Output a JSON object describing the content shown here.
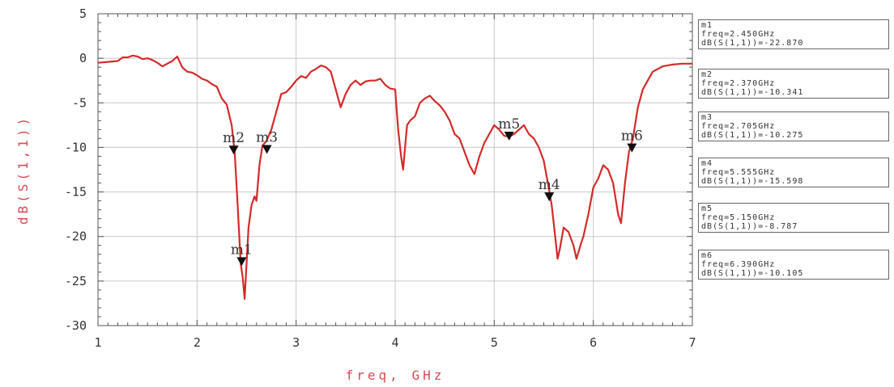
{
  "chart_data": {
    "type": "line",
    "xlabel": "freq, GHz",
    "ylabel": "dB(S(1,1))",
    "xlim": [
      1,
      7
    ],
    "ylim": [
      -30,
      5
    ],
    "xticks": [
      "1",
      "2",
      "3",
      "4",
      "5",
      "6",
      "7"
    ],
    "yticks": [
      "5",
      "0",
      "-5",
      "-10",
      "-15",
      "-20",
      "-25",
      "-30"
    ],
    "grid": true,
    "line_color": "#d42a2a",
    "series": [
      {
        "x": [
          1.0,
          1.1,
          1.2,
          1.25,
          1.3,
          1.35,
          1.4,
          1.45,
          1.5,
          1.55,
          1.6,
          1.65,
          1.7,
          1.75,
          1.8,
          1.85,
          1.9,
          1.95,
          2.0,
          2.05,
          2.1,
          2.15,
          2.2,
          2.25,
          2.3,
          2.35,
          2.38,
          2.41,
          2.44,
          2.46,
          2.48,
          2.5,
          2.52,
          2.55,
          2.58,
          2.6,
          2.63,
          2.66,
          2.7,
          2.75,
          2.8,
          2.85,
          2.9,
          2.95,
          3.0,
          3.05,
          3.1,
          3.15,
          3.2,
          3.25,
          3.3,
          3.35,
          3.4,
          3.45,
          3.5,
          3.55,
          3.6,
          3.65,
          3.7,
          3.75,
          3.8,
          3.85,
          3.9,
          3.95,
          4.0,
          4.03,
          4.06,
          4.08,
          4.1,
          4.12,
          4.15,
          4.2,
          4.25,
          4.3,
          4.35,
          4.4,
          4.45,
          4.5,
          4.55,
          4.6,
          4.65,
          4.7,
          4.75,
          4.8,
          4.85,
          4.9,
          4.95,
          5.0,
          5.05,
          5.1,
          5.15,
          5.2,
          5.25,
          5.3,
          5.35,
          5.4,
          5.45,
          5.5,
          5.55,
          5.58,
          5.61,
          5.64,
          5.66,
          5.7,
          5.75,
          5.8,
          5.83,
          5.87,
          5.9,
          5.95,
          6.0,
          6.05,
          6.1,
          6.15,
          6.2,
          6.25,
          6.28,
          6.32,
          6.36,
          6.4,
          6.45,
          6.5,
          6.55,
          6.6,
          6.7,
          6.8,
          6.9,
          7.0
        ],
        "y": [
          -0.5,
          -0.4,
          -0.3,
          0.1,
          0.1,
          0.3,
          0.2,
          -0.1,
          0.0,
          -0.2,
          -0.5,
          -0.9,
          -0.6,
          -0.3,
          0.2,
          -1.0,
          -1.5,
          -1.6,
          -1.9,
          -2.3,
          -2.5,
          -2.9,
          -3.2,
          -4.5,
          -5.2,
          -7.5,
          -10.5,
          -16.5,
          -23.0,
          -24.5,
          -27.0,
          -23.0,
          -19.0,
          -16.5,
          -15.5,
          -16.0,
          -12.0,
          -9.8,
          -9.3,
          -8.0,
          -6.0,
          -4.0,
          -3.8,
          -3.2,
          -2.5,
          -2.0,
          -2.2,
          -1.5,
          -1.2,
          -0.8,
          -1.0,
          -1.5,
          -3.5,
          -5.5,
          -4.0,
          -3.0,
          -2.5,
          -3.0,
          -2.6,
          -2.5,
          -2.5,
          -2.3,
          -3.0,
          -3.4,
          -3.5,
          -8.0,
          -11.0,
          -12.5,
          -10.0,
          -7.5,
          -7.0,
          -6.5,
          -5.0,
          -4.5,
          -4.2,
          -4.8,
          -5.3,
          -6.0,
          -7.0,
          -8.5,
          -9.0,
          -10.5,
          -12.0,
          -13.0,
          -11.0,
          -9.5,
          -8.5,
          -7.5,
          -8.0,
          -8.7,
          -8.8,
          -8.5,
          -8.0,
          -7.5,
          -8.5,
          -9.0,
          -10.0,
          -11.5,
          -14.5,
          -16.5,
          -19.5,
          -22.5,
          -21.5,
          -19.0,
          -19.5,
          -21.0,
          -22.5,
          -21.0,
          -20.0,
          -17.5,
          -14.5,
          -13.5,
          -12.0,
          -12.5,
          -14.0,
          -17.5,
          -18.5,
          -14.0,
          -10.5,
          -9.0,
          -5.5,
          -3.5,
          -2.5,
          -1.5,
          -0.9,
          -0.7,
          -0.6,
          -0.6
        ]
      }
    ],
    "markers": [
      {
        "name": "m1",
        "x": 2.45,
        "y": -22.87
      },
      {
        "name": "m2",
        "x": 2.37,
        "y": -10.341
      },
      {
        "name": "m3",
        "x": 2.705,
        "y": -10.275
      },
      {
        "name": "m4",
        "x": 5.555,
        "y": -15.598
      },
      {
        "name": "m5",
        "x": 5.15,
        "y": -8.787
      },
      {
        "name": "m6",
        "x": 6.39,
        "y": -10.105
      }
    ]
  },
  "marker_readouts": [
    {
      "name": "m1",
      "freq": "freq=2.450GHz",
      "value": "dB(S(1,1))=-22.870"
    },
    {
      "name": "m2",
      "freq": "freq=2.370GHz",
      "value": "dB(S(1,1))=-10.341"
    },
    {
      "name": "m3",
      "freq": "freq=2.705GHz",
      "value": "dB(S(1,1))=-10.275"
    },
    {
      "name": "m4",
      "freq": "freq=5.555GHz",
      "value": "dB(S(1,1))=-15.598"
    },
    {
      "name": "m5",
      "freq": "freq=5.150GHz",
      "value": "dB(S(1,1))=-8.787"
    },
    {
      "name": "m6",
      "freq": "freq=6.390GHz",
      "value": "dB(S(1,1))=-10.105"
    }
  ]
}
